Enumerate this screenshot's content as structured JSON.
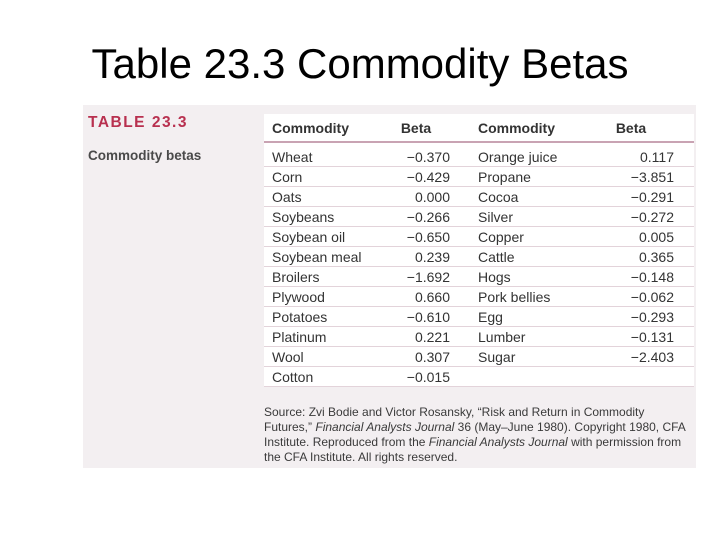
{
  "slide": {
    "title": "Table 23.3 Commodity Betas"
  },
  "panel": {
    "label": "TABLE 23.3",
    "caption": "Commodity betas"
  },
  "table": {
    "headers": [
      "Commodity",
      "Beta",
      "Commodity",
      "Beta"
    ],
    "rows": [
      [
        "Wheat",
        "−0.370",
        "Orange juice",
        "0.117"
      ],
      [
        "Corn",
        "−0.429",
        "Propane",
        "−3.851"
      ],
      [
        "Oats",
        "0.000",
        "Cocoa",
        "−0.291"
      ],
      [
        "Soybeans",
        "−0.266",
        "Silver",
        "−0.272"
      ],
      [
        "Soybean oil",
        "−0.650",
        "Copper",
        "0.005"
      ],
      [
        "Soybean meal",
        "0.239",
        "Cattle",
        "0.365"
      ],
      [
        "Broilers",
        "−1.692",
        "Hogs",
        "−0.148"
      ],
      [
        "Plywood",
        "0.660",
        "Pork bellies",
        "−0.062"
      ],
      [
        "Potatoes",
        "−0.610",
        "Egg",
        "−0.293"
      ],
      [
        "Platinum",
        "0.221",
        "Lumber",
        "−0.131"
      ],
      [
        "Wool",
        "0.307",
        "Sugar",
        "−2.403"
      ],
      [
        "Cotton",
        "−0.015",
        "",
        ""
      ]
    ]
  },
  "source": {
    "p1": "Source: Zvi Bodie and Victor Rosansky, “Risk and Return in Commodity Futures,” ",
    "p2": "Financial Analysts Journal",
    "p3": " 36 (May–June 1980). Copyright 1980, CFA Institute. Reproduced from the ",
    "p4": "Financial Analysts Journal",
    "p5": " with permission from the CFA Institute. All rights reserved."
  }
}
